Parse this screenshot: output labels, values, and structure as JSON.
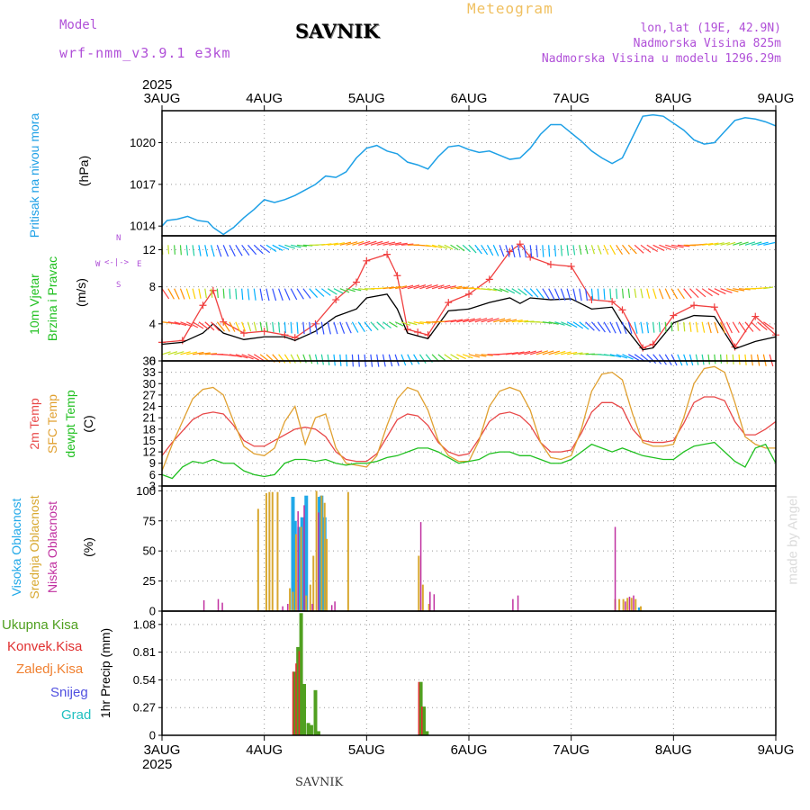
{
  "header": {
    "model_label": "Model",
    "model_name": "wrf-nmm_v3.9.1 e3km",
    "station": "SAVNIK",
    "product": "Meteogram",
    "coords": "lon,lat (19E, 42.9N)",
    "elevation": "Nadmorska Visina 825m",
    "model_elevation": "Nadmorska Visina u modelu 1296.29m",
    "credit": "made by Angel",
    "footer_station": "SAVNIK"
  },
  "colors": {
    "pressure": "#1ea0e6",
    "wind_speed": "#000000",
    "wind_gust": "#f04040",
    "temp2m": "#e84848",
    "sfc_temp": "#e0a030",
    "dewpoint": "#20c020",
    "cloud_high": "#20a8e8",
    "cloud_mid": "#d8a830",
    "cloud_low": "#c030a0",
    "precip_total": "#50a020",
    "precip_conv": "#e03030",
    "precip_frozen": "#f08030",
    "precip_snow": "#5050e0",
    "precip_grad": "#20c0c0",
    "model_text": "#b050d8",
    "product_text": "#f0c060"
  },
  "chart_data": [
    {
      "type": "line",
      "panel": "pressure",
      "ylabel_name": "Pritisak na nivou mora",
      "ylabel_unit": "(hPa)",
      "yticks": [
        1014,
        1017,
        1020
      ],
      "ylim": [
        1013.3,
        1022.3
      ],
      "x_unit": "days since 3AUG 00Z",
      "series": [
        {
          "name": "Pritisak na nivou mora",
          "x": [
            0,
            0.05,
            0.15,
            0.25,
            0.35,
            0.45,
            0.5,
            0.6,
            0.7,
            0.8,
            0.9,
            1.0,
            1.1,
            1.2,
            1.3,
            1.4,
            1.5,
            1.6,
            1.7,
            1.8,
            1.9,
            2.0,
            2.1,
            2.2,
            2.3,
            2.4,
            2.5,
            2.6,
            2.7,
            2.8,
            2.9,
            3.0,
            3.1,
            3.2,
            3.3,
            3.4,
            3.5,
            3.6,
            3.7,
            3.8,
            3.9,
            4.0,
            4.1,
            4.2,
            4.3,
            4.4,
            4.5,
            4.6,
            4.7,
            4.8,
            4.9,
            5.0,
            5.1,
            5.2,
            5.3,
            5.4,
            5.5,
            5.6,
            5.7,
            5.8,
            5.9,
            6.0
          ],
          "values": [
            1014.0,
            1014.4,
            1014.5,
            1014.7,
            1014.4,
            1014.3,
            1013.9,
            1013.4,
            1013.9,
            1014.6,
            1015.2,
            1015.9,
            1015.7,
            1015.9,
            1016.2,
            1016.6,
            1017.0,
            1017.6,
            1017.5,
            1017.9,
            1018.9,
            1019.6,
            1019.8,
            1019.4,
            1019.2,
            1018.6,
            1018.4,
            1018.1,
            1019.0,
            1019.7,
            1019.8,
            1019.5,
            1019.3,
            1019.4,
            1019.1,
            1018.8,
            1018.9,
            1019.6,
            1020.6,
            1021.3,
            1021.3,
            1020.7,
            1020.1,
            1019.4,
            1018.9,
            1018.5,
            1018.9,
            1020.4,
            1021.9,
            1022.0,
            1021.9,
            1021.4,
            1020.9,
            1020.2,
            1019.9,
            1020.0,
            1020.8,
            1021.6,
            1021.8,
            1021.7,
            1021.5,
            1021.2
          ]
        }
      ]
    },
    {
      "type": "line",
      "panel": "wind",
      "ylabel_name": "10m Vjetar Brzina i Pravac",
      "ylabel_unit": "(m/s)",
      "compass": {
        "north": "N",
        "south": "S",
        "west": "W",
        "east": "E"
      },
      "yticks": [
        0,
        4,
        8,
        12
      ],
      "ylim": [
        0,
        13.5
      ],
      "series": [
        {
          "name": "Brzina",
          "x": [
            0,
            0.2,
            0.4,
            0.5,
            0.6,
            0.8,
            1.0,
            1.2,
            1.3,
            1.5,
            1.7,
            1.9,
            2.0,
            2.2,
            2.3,
            2.4,
            2.5,
            2.6,
            2.8,
            3.0,
            3.2,
            3.4,
            3.5,
            3.6,
            3.8,
            4.0,
            4.2,
            4.4,
            4.5,
            4.7,
            4.8,
            5.0,
            5.2,
            5.4,
            5.6,
            5.8,
            6.0
          ],
          "values": [
            1.8,
            2.0,
            3.0,
            4.0,
            3.0,
            2.3,
            2.6,
            2.6,
            2.2,
            3.2,
            4.8,
            5.6,
            6.8,
            7.2,
            5.6,
            3.0,
            2.7,
            2.4,
            5.4,
            5.6,
            6.3,
            6.8,
            6.2,
            6.8,
            6.6,
            6.7,
            5.6,
            5.8,
            4.0,
            1.2,
            1.4,
            4.1,
            4.9,
            4.8,
            1.3,
            2.1,
            2.6
          ]
        },
        {
          "name": "Udar",
          "x": [
            0,
            0.2,
            0.4,
            0.5,
            0.6,
            0.8,
            1.0,
            1.2,
            1.3,
            1.5,
            1.7,
            1.9,
            2.0,
            2.2,
            2.3,
            2.4,
            2.5,
            2.6,
            2.8,
            3.0,
            3.2,
            3.4,
            3.5,
            3.6,
            3.8,
            4.0,
            4.2,
            4.4,
            4.5,
            4.7,
            4.8,
            5.0,
            5.2,
            5.4,
            5.6,
            5.8,
            6.0
          ],
          "values": [
            2.0,
            2.2,
            6.0,
            7.6,
            4.2,
            3.0,
            3.2,
            2.8,
            2.5,
            4.0,
            6.6,
            8.5,
            10.8,
            11.5,
            9.2,
            3.4,
            3.1,
            2.8,
            6.3,
            7.2,
            8.8,
            11.8,
            12.6,
            11.2,
            10.4,
            10.2,
            6.6,
            6.4,
            5.5,
            1.4,
            1.8,
            4.9,
            6.0,
            5.8,
            1.5,
            4.8,
            2.8
          ]
        }
      ]
    },
    {
      "type": "line",
      "panel": "temperature",
      "ylabel_lines": [
        "2m Temp",
        "SFC Temp",
        "dewpt Temp"
      ],
      "ylabel_unit": "(C)",
      "yticks": [
        3,
        6,
        9,
        12,
        15,
        18,
        21,
        24,
        27,
        30,
        33,
        36
      ],
      "ylim": [
        3,
        36
      ],
      "series": [
        {
          "name": "2m Temp",
          "x": [
            0,
            0.1,
            0.2,
            0.3,
            0.4,
            0.5,
            0.6,
            0.7,
            0.8,
            0.9,
            1.0,
            1.1,
            1.2,
            1.3,
            1.4,
            1.5,
            1.6,
            1.7,
            1.8,
            1.9,
            2.0,
            2.1,
            2.2,
            2.3,
            2.4,
            2.5,
            2.6,
            2.7,
            2.8,
            2.9,
            3.0,
            3.1,
            3.2,
            3.3,
            3.4,
            3.5,
            3.6,
            3.7,
            3.8,
            3.9,
            4.0,
            4.1,
            4.2,
            4.3,
            4.4,
            4.5,
            4.6,
            4.7,
            4.8,
            4.9,
            5.0,
            5.1,
            5.2,
            5.3,
            5.4,
            5.5,
            5.6,
            5.7,
            5.8,
            5.9,
            6.0
          ],
          "values": [
            11,
            14.5,
            17.5,
            20.5,
            22,
            22.5,
            22,
            19,
            15,
            13.5,
            13.5,
            15,
            16.5,
            18,
            18.5,
            18,
            16,
            12,
            10,
            9.5,
            9.5,
            11.5,
            16,
            20.5,
            22,
            21.5,
            19,
            14.5,
            12,
            11,
            11.5,
            15.5,
            20,
            22,
            22.5,
            21.5,
            19,
            14.5,
            12,
            12,
            12.5,
            17,
            22.5,
            25,
            25,
            23.5,
            18,
            15,
            14.5,
            14.5,
            15,
            19.5,
            25,
            26.5,
            26.5,
            25.5,
            20,
            16.5,
            16.5,
            18,
            20
          ]
        },
        {
          "name": "SFC Temp",
          "x": [
            0,
            0.1,
            0.2,
            0.3,
            0.4,
            0.5,
            0.6,
            0.7,
            0.8,
            0.9,
            1.0,
            1.1,
            1.2,
            1.3,
            1.4,
            1.5,
            1.6,
            1.7,
            1.8,
            1.9,
            2.0,
            2.1,
            2.2,
            2.3,
            2.4,
            2.5,
            2.6,
            2.7,
            2.8,
            2.9,
            3.0,
            3.1,
            3.2,
            3.3,
            3.4,
            3.5,
            3.6,
            3.7,
            3.8,
            3.9,
            4.0,
            4.1,
            4.2,
            4.3,
            4.4,
            4.5,
            4.6,
            4.7,
            4.8,
            4.9,
            5.0,
            5.1,
            5.2,
            5.3,
            5.4,
            5.5,
            5.6,
            5.7,
            5.8,
            5.9,
            6.0
          ],
          "values": [
            7,
            14,
            20,
            26,
            28.5,
            29,
            27,
            20,
            13.5,
            11.5,
            11,
            13,
            20,
            24,
            14,
            21,
            22,
            13,
            9,
            8.5,
            8,
            11,
            19,
            26,
            29,
            28,
            23,
            15,
            11,
            9.5,
            9.5,
            15,
            24,
            28,
            29,
            28,
            23,
            14.5,
            10.5,
            10,
            11,
            18,
            28,
            32.5,
            33,
            31,
            22,
            14.5,
            13.5,
            13.5,
            14,
            21,
            30,
            34,
            34.5,
            33,
            25,
            16,
            14,
            13,
            13
          ]
        },
        {
          "name": "dewpt Temp",
          "x": [
            0,
            0.1,
            0.2,
            0.3,
            0.4,
            0.5,
            0.6,
            0.7,
            0.8,
            0.9,
            1.0,
            1.1,
            1.2,
            1.3,
            1.4,
            1.5,
            1.6,
            1.7,
            1.8,
            1.9,
            2.0,
            2.1,
            2.2,
            2.3,
            2.4,
            2.5,
            2.6,
            2.7,
            2.8,
            2.9,
            3.0,
            3.1,
            3.2,
            3.3,
            3.4,
            3.5,
            3.6,
            3.7,
            3.8,
            3.9,
            4.0,
            4.1,
            4.2,
            4.3,
            4.4,
            4.5,
            4.6,
            4.7,
            4.8,
            4.9,
            5.0,
            5.1,
            5.2,
            5.3,
            5.4,
            5.5,
            5.6,
            5.7,
            5.8,
            5.9,
            6.0
          ],
          "values": [
            6,
            5,
            8,
            9.5,
            9,
            10,
            9,
            9,
            7,
            6,
            5.5,
            6,
            9,
            10,
            10,
            9.5,
            10,
            9,
            8.5,
            9,
            9,
            9.5,
            10.5,
            11,
            12,
            13,
            13,
            12,
            10.5,
            9,
            9.5,
            10,
            11.5,
            12,
            12,
            11,
            11,
            10,
            9,
            9,
            10,
            12,
            14,
            13,
            12,
            13,
            12,
            11,
            10.5,
            10,
            10,
            12,
            13.5,
            14,
            14.5,
            12,
            9.5,
            8,
            13,
            14,
            9
          ]
        }
      ]
    },
    {
      "type": "bar",
      "panel": "clouds",
      "ylabel_lines": [
        "Visoka Oblacnost",
        "Srednja Oblacnost",
        "Niska Oblacnost"
      ],
      "ylabel_unit": "(%)",
      "yticks": [
        0,
        25,
        50,
        75,
        100
      ],
      "ylim": [
        0,
        104
      ],
      "series": [
        {
          "name": "Visoka Oblacnost",
          "x": [
            1.28,
            1.3,
            1.34,
            1.37,
            1.41,
            1.54,
            1.56,
            1.59,
            4.67
          ],
          "values": [
            95,
            75,
            70,
            78,
            96,
            95,
            96,
            78,
            3
          ]
        },
        {
          "name": "Srednja Oblacnost",
          "x": [
            0.94,
            1.02,
            1.05,
            1.08,
            1.13,
            1.25,
            1.28,
            1.31,
            1.36,
            1.41,
            1.45,
            1.48,
            1.51,
            1.56,
            1.59,
            1.61,
            1.82,
            2.51,
            2.55,
            2.61,
            4.43,
            4.47,
            4.51,
            4.55,
            4.59,
            4.63,
            4.68
          ],
          "values": [
            85,
            98,
            99,
            99,
            99,
            19,
            16,
            64,
            70,
            13,
            22,
            46,
            100,
            96,
            90,
            60,
            99,
            46,
            22,
            6,
            10,
            10,
            10,
            11,
            11,
            10,
            4
          ]
        },
        {
          "name": "Niska Oblacnost",
          "x": [
            0.41,
            0.55,
            0.59,
            1.18,
            1.23,
            1.33,
            1.39,
            1.47,
            1.53,
            1.66,
            1.69,
            2.53,
            2.62,
            2.66,
            3.43,
            3.48,
            4.43,
            4.53,
            4.57,
            4.61
          ],
          "values": [
            9,
            10,
            7,
            4,
            6,
            83,
            88,
            6,
            82,
            5,
            8,
            74,
            16,
            14,
            10,
            13,
            70,
            8,
            12,
            13
          ]
        }
      ]
    },
    {
      "type": "bar",
      "panel": "precipitation",
      "ylabel_name": "1hr Precip",
      "ylabel_unit": "(mm)",
      "legend": [
        "Ukupna Kisa",
        "Konvek.Kisa",
        "Zaledj.Kisa",
        "Snijeg",
        "Grad"
      ],
      "yticks": [
        0,
        0.27,
        0.54,
        0.81,
        1.08
      ],
      "ylim": [
        0,
        1.21
      ],
      "series": [
        {
          "name": "Ukupna Kisa",
          "x": [
            1.3,
            1.33,
            1.36,
            1.39,
            1.43,
            1.46,
            1.5,
            1.53,
            2.53,
            2.56,
            2.59
          ],
          "values": [
            0.62,
            0.86,
            1.19,
            0.5,
            0.12,
            0.1,
            0.44,
            0.04,
            0.52,
            0.28,
            0.04
          ]
        },
        {
          "name": "Konvek.Kisa",
          "x": [
            1.3,
            1.33,
            1.36,
            2.53,
            2.56
          ],
          "values": [
            0.62,
            0.7,
            0.82,
            0.52,
            0.28
          ]
        }
      ]
    }
  ],
  "x_axis": {
    "year": "2025",
    "days": [
      "3AUG",
      "4AUG",
      "5AUG",
      "6AUG",
      "7AUG",
      "8AUG",
      "9AUG"
    ]
  }
}
